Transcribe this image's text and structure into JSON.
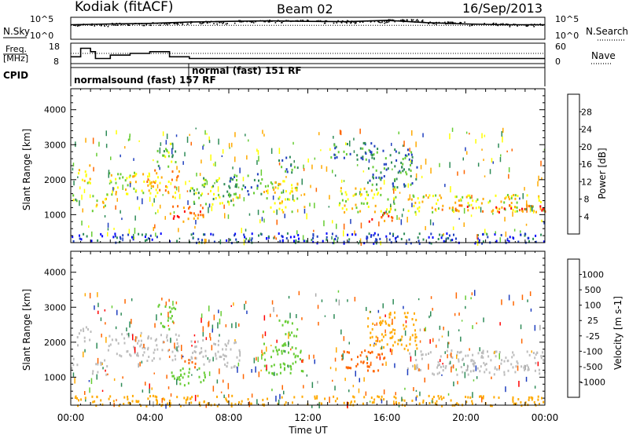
{
  "header": {
    "station": "Kodiak (fitACF)",
    "beam": "Beam 02",
    "date": "16/Sep/2013"
  },
  "labels": {
    "nsky": "N.Sky",
    "nsearch": "N.Search",
    "freq_line1": "Freq.",
    "freq_line2": "[MHz]",
    "nave": "Nave",
    "cpid": "CPID",
    "cpid_seg1": "normalsound (fast) 157  RF",
    "cpid_seg2": "normal (fast) 151 RF"
  },
  "colors": {
    "power_scale": [
      "#ff0000",
      "#ff6600",
      "#ffaa00",
      "#ffff00",
      "#66cc33",
      "#2e8b57",
      "#1f3fbf",
      "#0000ff"
    ],
    "velocity_scale": [
      "#1f3fbf",
      "#2e8b57",
      "#66cc33",
      "#aaaaaa",
      "#ffaa00",
      "#ff6600",
      "#ff0000"
    ],
    "ground_scatter": "#bdbdbd"
  },
  "chart_data": [
    {
      "type": "line",
      "title": "",
      "series": [
        {
          "name": "N.Sky",
          "x": [
            "00:00",
            "02:00",
            "04:00",
            "06:00",
            "08:00",
            "10:00",
            "12:00",
            "14:00",
            "16:00",
            "18:00",
            "20:00",
            "22:00",
            "00:00"
          ],
          "values": [
            2000,
            3000,
            4000,
            8000,
            12000,
            15000,
            12000,
            10000,
            20000,
            6000,
            3000,
            2000,
            2000
          ]
        },
        {
          "name": "N.Search",
          "x": [
            "00:00",
            "06:00",
            "12:00",
            "18:00",
            "00:00"
          ],
          "values": [
            1500,
            1500,
            1500,
            1500,
            1500
          ]
        }
      ],
      "left_ticks": [
        "10^5",
        "10^0"
      ],
      "right_ticks": [
        "10^5",
        "10^0"
      ]
    },
    {
      "type": "line",
      "title": "",
      "series": [
        {
          "name": "Freq.",
          "x": [
            "00:00",
            "00:30",
            "01:00",
            "01:15",
            "02:00",
            "03:00",
            "04:00",
            "05:00",
            "06:00",
            "24:00"
          ],
          "values": [
            12,
            17,
            15,
            11,
            13,
            14,
            15,
            12,
            11,
            11
          ]
        },
        {
          "name": "Nave",
          "x": [
            "00:00",
            "06:00",
            "24:00"
          ],
          "values": [
            30,
            30,
            30
          ]
        }
      ],
      "left_ticks": [
        "18",
        "8"
      ],
      "right_ticks": [
        "60",
        "0"
      ]
    },
    {
      "type": "heatmap",
      "title": "",
      "xlabel": "",
      "ylabel": "Slant Range [km]",
      "xlim": [
        0,
        24
      ],
      "ylim": [
        200,
        4600
      ],
      "y_ticks": [
        "1000",
        "2000",
        "3000",
        "4000"
      ],
      "colorbar_label": "Power [dB]",
      "colorbar_ticks": [
        "4",
        "8",
        "12",
        "16",
        "20",
        "24",
        "28"
      ],
      "regions": [
        {
          "t0": 0.0,
          "t1": 0.3,
          "r0": 1100,
          "r1": 1600,
          "value": 12
        },
        {
          "t0": 0.3,
          "t1": 1.0,
          "r0": 1900,
          "r1": 2500,
          "value": 16
        },
        {
          "t0": 1.0,
          "t1": 1.8,
          "r0": 1100,
          "r1": 1600,
          "value": 16
        },
        {
          "t0": 1.8,
          "t1": 3.8,
          "r0": 1600,
          "r1": 2300,
          "value": 16
        },
        {
          "t0": 3.8,
          "t1": 5.5,
          "r0": 1500,
          "r1": 2300,
          "value": 20
        },
        {
          "t0": 4.3,
          "t1": 5.3,
          "r0": 2400,
          "r1": 3100,
          "value": 12
        },
        {
          "t0": 5.0,
          "t1": 6.8,
          "r0": 800,
          "r1": 1300,
          "value": 24
        },
        {
          "t0": 6.0,
          "t1": 8.5,
          "r0": 1300,
          "r1": 2100,
          "value": 12
        },
        {
          "t0": 8.0,
          "t1": 9.7,
          "r0": 1600,
          "r1": 2200,
          "value": 8
        },
        {
          "t0": 9.7,
          "t1": 11.8,
          "r0": 1100,
          "r1": 2000,
          "value": 16
        },
        {
          "t0": 10.5,
          "t1": 11.5,
          "r0": 2200,
          "r1": 2700,
          "value": 8
        },
        {
          "t0": 13.0,
          "t1": 15.5,
          "r0": 2600,
          "r1": 3100,
          "value": 8
        },
        {
          "t0": 13.5,
          "t1": 16.5,
          "r0": 1100,
          "r1": 1800,
          "value": 16
        },
        {
          "t0": 15.0,
          "t1": 16.5,
          "r0": 800,
          "r1": 1100,
          "value": 24
        },
        {
          "t0": 15.0,
          "t1": 17.5,
          "r0": 1800,
          "r1": 2900,
          "value": 8
        },
        {
          "t0": 17.0,
          "t1": 24.0,
          "r0": 1100,
          "r1": 1600,
          "value": 16
        },
        {
          "t0": 18.0,
          "t1": 24.0,
          "r0": 1100,
          "r1": 1300,
          "value": 24
        },
        {
          "t0": 0.0,
          "t1": 24.0,
          "r0": 200,
          "r1": 500,
          "value": 4
        }
      ]
    },
    {
      "type": "heatmap",
      "title": "",
      "xlabel": "Time UT",
      "ylabel": "Slant Range [km]",
      "xlim": [
        0,
        24
      ],
      "ylim": [
        200,
        4600
      ],
      "x_ticks": [
        "00:00",
        "04:00",
        "08:00",
        "12:00",
        "16:00",
        "20:00",
        "00:00"
      ],
      "y_ticks": [
        "1000",
        "2000",
        "3000",
        "4000"
      ],
      "colorbar_label": "Velocity [m s-1]",
      "colorbar_ticks": [
        "1000",
        "500",
        "100",
        "25",
        "-25",
        "-100",
        "-500",
        "-1000"
      ],
      "regions": [
        {
          "t0": 0.0,
          "t1": 0.3,
          "r0": 1100,
          "r1": 1600,
          "value": 0,
          "gs": true
        },
        {
          "t0": 0.3,
          "t1": 1.0,
          "r0": 1900,
          "r1": 2500,
          "value": 0,
          "gs": true
        },
        {
          "t0": 1.0,
          "t1": 1.8,
          "r0": 1100,
          "r1": 1600,
          "value": 0,
          "gs": true
        },
        {
          "t0": 1.8,
          "t1": 3.8,
          "r0": 1600,
          "r1": 2300,
          "value": 0,
          "gs": true
        },
        {
          "t0": 3.8,
          "t1": 5.5,
          "r0": 1500,
          "r1": 2300,
          "value": 0,
          "gs": true
        },
        {
          "t0": 4.3,
          "t1": 5.3,
          "r0": 2400,
          "r1": 3100,
          "value": 60
        },
        {
          "t0": 5.0,
          "t1": 6.8,
          "r0": 800,
          "r1": 1300,
          "value": 60
        },
        {
          "t0": 5.5,
          "t1": 6.3,
          "r0": 1300,
          "r1": 1600,
          "value": -300
        },
        {
          "t0": 6.0,
          "t1": 8.5,
          "r0": 1300,
          "r1": 2100,
          "value": 0,
          "gs": true
        },
        {
          "t0": 9.7,
          "t1": 11.8,
          "r0": 1100,
          "r1": 2000,
          "value": 60
        },
        {
          "t0": 10.5,
          "t1": 11.5,
          "r0": 2200,
          "r1": 2700,
          "value": 60
        },
        {
          "t0": 13.5,
          "t1": 16.0,
          "r0": 1200,
          "r1": 1800,
          "value": -300
        },
        {
          "t0": 15.0,
          "t1": 17.5,
          "r0": 1800,
          "r1": 2900,
          "value": -60
        },
        {
          "t0": 17.0,
          "t1": 24.0,
          "r0": 1100,
          "r1": 1800,
          "value": 0,
          "gs": true
        },
        {
          "t0": 0.0,
          "t1": 24.0,
          "r0": 200,
          "r1": 500,
          "value": -60
        }
      ]
    }
  ]
}
